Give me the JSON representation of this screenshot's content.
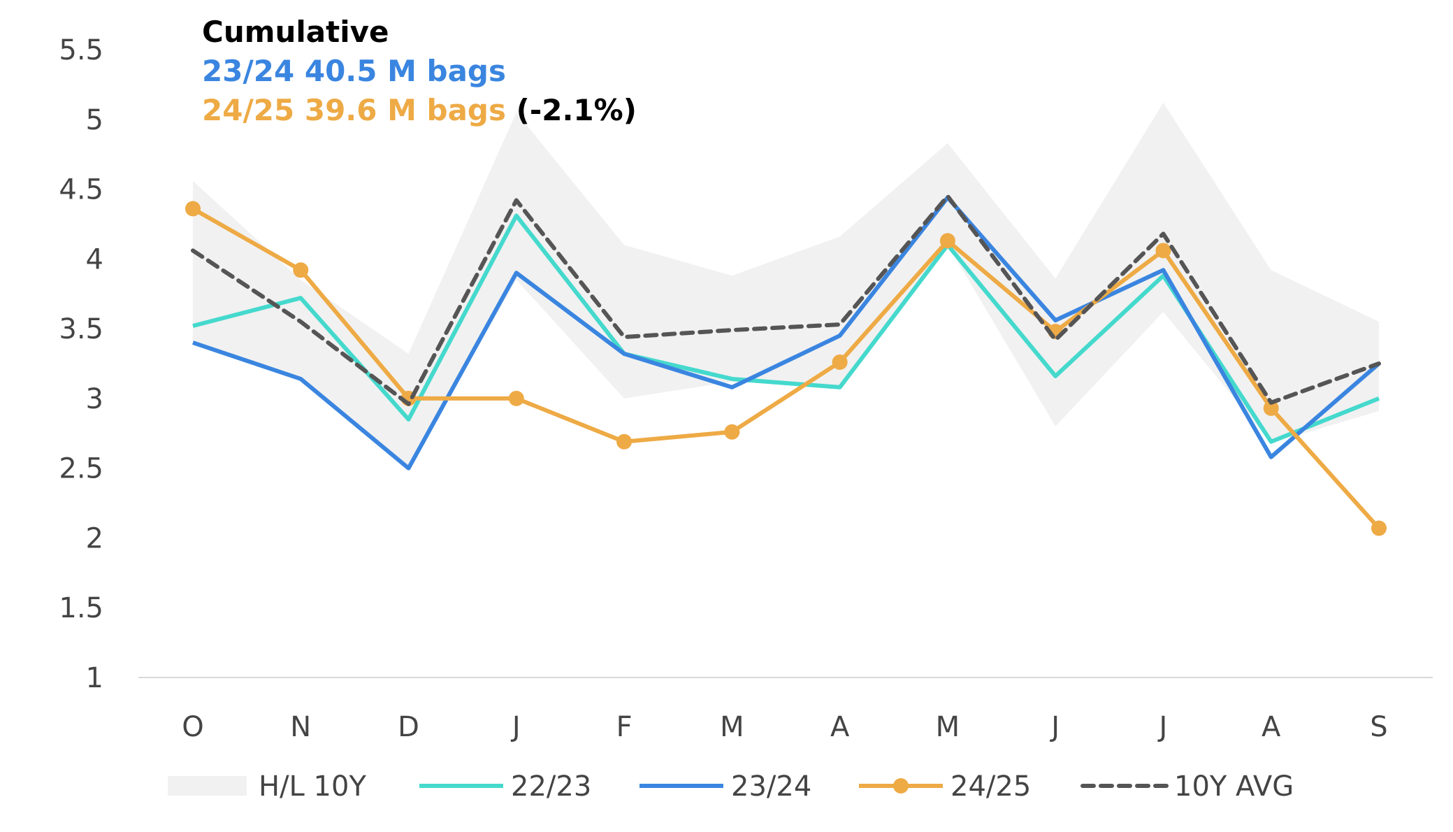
{
  "chart_data": {
    "type": "line",
    "title": "Cumulative",
    "subtitle_2324": "23/24 40.5 M bags",
    "subtitle_2425": "24/25 39.6 M bags",
    "subtitle_change": "(-2.1%)",
    "categories": [
      "O",
      "N",
      "D",
      "J",
      "F",
      "M",
      "A",
      "M",
      "J",
      "J",
      "A",
      "S"
    ],
    "ylim": [
      1,
      5.5
    ],
    "yticks": [
      "1",
      "1.5",
      "2",
      "2.5",
      "3",
      "3.5",
      "4",
      "4.5",
      "5",
      "5.5"
    ],
    "ytick_values": [
      1,
      1.5,
      2,
      2.5,
      3,
      3.5,
      4,
      4.5,
      5,
      5.5
    ],
    "xlabel": "",
    "ylabel": "",
    "grid": false,
    "legend_position": "bottom",
    "band": {
      "name": "H/L 10Y",
      "color": "#f1f1f1",
      "high": [
        4.56,
        3.85,
        3.32,
        5.05,
        4.1,
        3.88,
        4.16,
        4.83,
        3.86,
        5.12,
        3.92,
        3.55
      ],
      "low": [
        3.4,
        3.14,
        2.5,
        3.85,
        3.0,
        3.12,
        3.08,
        4.1,
        2.8,
        3.62,
        2.68,
        2.91
      ]
    },
    "series": [
      {
        "name": "22/23",
        "color": "#45d9cd",
        "style": "solid",
        "markers": false,
        "values": [
          3.52,
          3.72,
          2.85,
          4.31,
          3.32,
          3.14,
          3.08,
          4.1,
          3.16,
          3.88,
          2.69,
          3.0
        ]
      },
      {
        "name": "23/24",
        "color": "#3a85e0",
        "style": "solid",
        "markers": false,
        "values": [
          3.4,
          3.14,
          2.5,
          3.9,
          3.32,
          3.08,
          3.45,
          4.44,
          3.56,
          3.92,
          2.58,
          3.25
        ]
      },
      {
        "name": "24/25",
        "color": "#eeaa45",
        "style": "solid",
        "markers": true,
        "values": [
          4.36,
          3.92,
          3.0,
          3.0,
          2.69,
          2.76,
          3.26,
          4.13,
          3.48,
          4.06,
          2.93,
          2.07
        ]
      },
      {
        "name": "10Y AVG",
        "color": "#555555",
        "style": "dashed",
        "markers": false,
        "values": [
          4.06,
          3.55,
          2.96,
          4.42,
          3.44,
          3.49,
          3.53,
          4.45,
          3.42,
          4.18,
          2.97,
          3.25
        ]
      }
    ]
  }
}
